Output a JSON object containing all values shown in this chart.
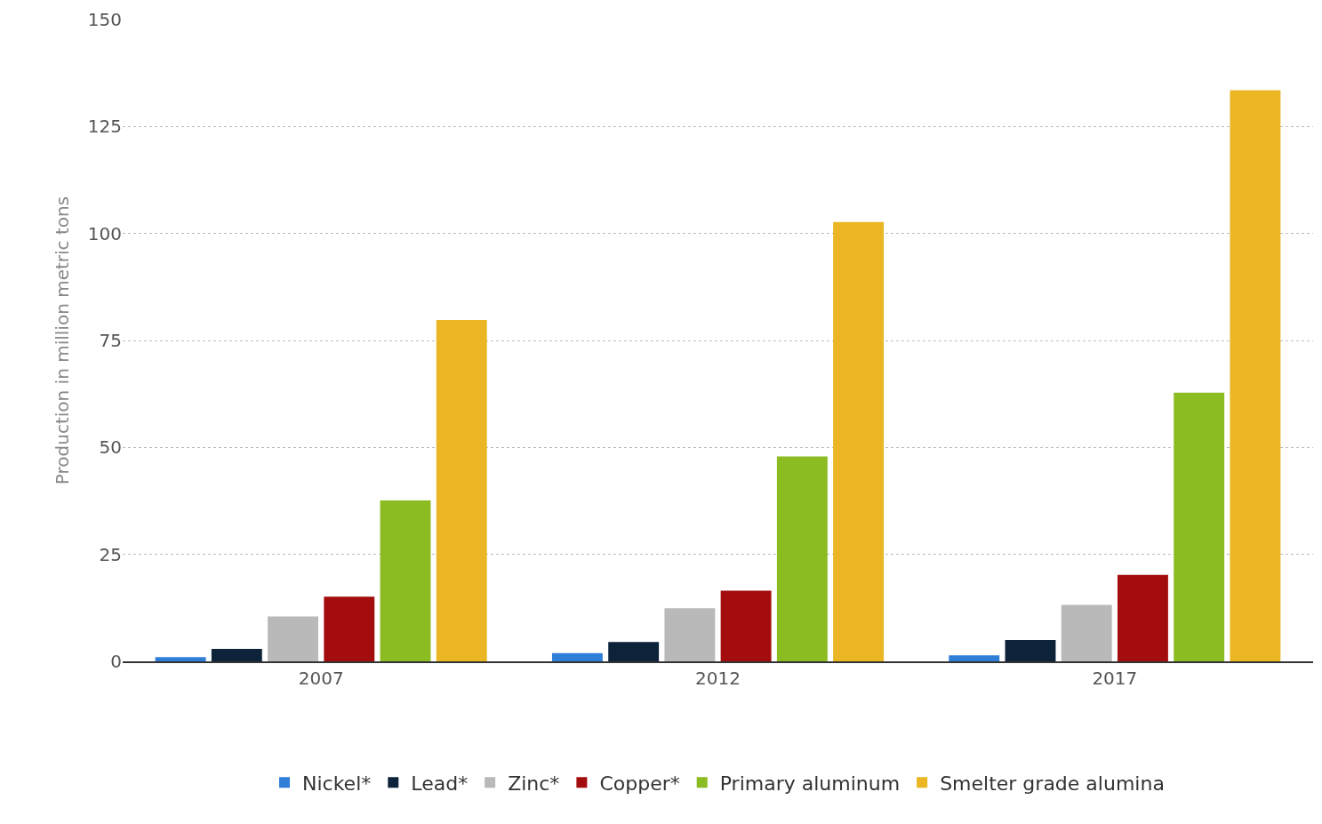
{
  "chart_data": {
    "type": "bar",
    "ylabel": "Production in million metric tons",
    "categories": [
      "2007",
      "2012",
      "2017"
    ],
    "series": [
      {
        "name": "Nickel*",
        "color": "#2f7ed8",
        "values": [
          1.0,
          1.9,
          1.4
        ]
      },
      {
        "name": "Lead*",
        "color": "#0d233a",
        "values": [
          2.9,
          4.5,
          5.0
        ]
      },
      {
        "name": "Zinc*",
        "color": "#b9b9b9",
        "values": [
          10.5,
          12.4,
          13.2
        ]
      },
      {
        "name": "Copper*",
        "color": "#a30d0d",
        "values": [
          15.1,
          16.5,
          20.2
        ]
      },
      {
        "name": "Primary aluminum",
        "color": "#8bbc21",
        "values": [
          37.6,
          47.9,
          62.8
        ]
      },
      {
        "name": "Smelter grade alumina",
        "color": "#eab624",
        "values": [
          79.8,
          102.7,
          133.5
        ]
      }
    ],
    "ylim": [
      0,
      150
    ],
    "yticks": [
      0,
      25,
      50,
      75,
      100,
      125,
      150
    ],
    "grid": "y",
    "legend": "bottom"
  }
}
